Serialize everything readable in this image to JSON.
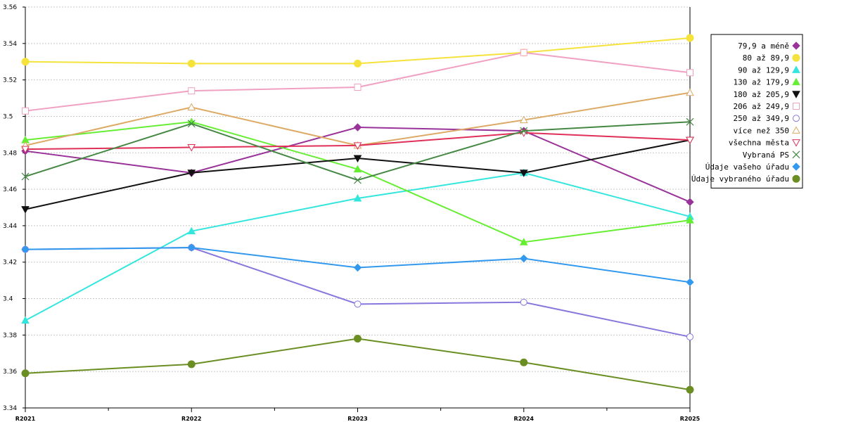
{
  "chart_data": {
    "type": "line",
    "categories": [
      "R2021",
      "R2022",
      "R2023",
      "R2024",
      "R2025"
    ],
    "ylim": [
      3.34,
      3.56
    ],
    "yticks": [
      "3.34",
      "3.36",
      "3.38",
      "3.4",
      "3.42",
      "3.44",
      "3.46",
      "3.48",
      "3.5",
      "3.52",
      "3.54",
      "3.56"
    ],
    "grid": true,
    "legend_position": "right",
    "series": [
      {
        "name": "79,9 a méně",
        "color": "#993399",
        "marker": "diamond",
        "values": [
          3.481,
          3.469,
          3.494,
          3.492,
          3.453
        ]
      },
      {
        "name": "80 až 89,9",
        "color": "#f5e33c",
        "marker": "circle",
        "values": [
          3.53,
          3.529,
          3.529,
          3.535,
          3.543
        ]
      },
      {
        "name": "90 až 129,9",
        "color": "#33e6dd",
        "marker": "triangle-up",
        "values": [
          3.388,
          3.437,
          3.455,
          3.469,
          3.445
        ]
      },
      {
        "name": "130 až 179,9",
        "color": "#66ee33",
        "marker": "triangle-up",
        "values": [
          3.487,
          3.497,
          3.471,
          3.431,
          3.443
        ]
      },
      {
        "name": "180 až 205,9",
        "color": "#111111",
        "marker": "triangle-down",
        "values": [
          3.449,
          3.469,
          3.477,
          3.469,
          3.487
        ]
      },
      {
        "name": "206 až 249,9",
        "color": "#f0a0c0",
        "marker": "square-open",
        "values": [
          3.503,
          3.514,
          3.516,
          3.535,
          3.524
        ]
      },
      {
        "name": "250 až 349,9",
        "color": "#8877dd",
        "marker": "circle-open",
        "values": [
          3.427,
          3.428,
          3.397,
          3.398,
          3.379
        ]
      },
      {
        "name": "více než 350",
        "color": "#ddaa66",
        "marker": "triangle-up-open",
        "values": [
          3.484,
          3.505,
          3.484,
          3.498,
          3.513
        ]
      },
      {
        "name": "všechna města",
        "color": "#e0305a",
        "marker": "triangle-down-open",
        "values": [
          3.482,
          3.483,
          3.484,
          3.491,
          3.487
        ]
      },
      {
        "name": "Vybraná PS",
        "color": "#448844",
        "marker": "x",
        "values": [
          3.467,
          3.496,
          3.465,
          3.492,
          3.497
        ]
      },
      {
        "name": "Údaje vašeho úřadu",
        "color": "#3399ee",
        "marker": "diamond",
        "values": [
          3.427,
          3.428,
          3.417,
          3.422,
          3.409
        ]
      },
      {
        "name": "Údaje vybraného úřadu",
        "color": "#6b8e23",
        "marker": "circle",
        "values": [
          3.359,
          3.364,
          3.378,
          3.365,
          3.35
        ]
      }
    ]
  }
}
